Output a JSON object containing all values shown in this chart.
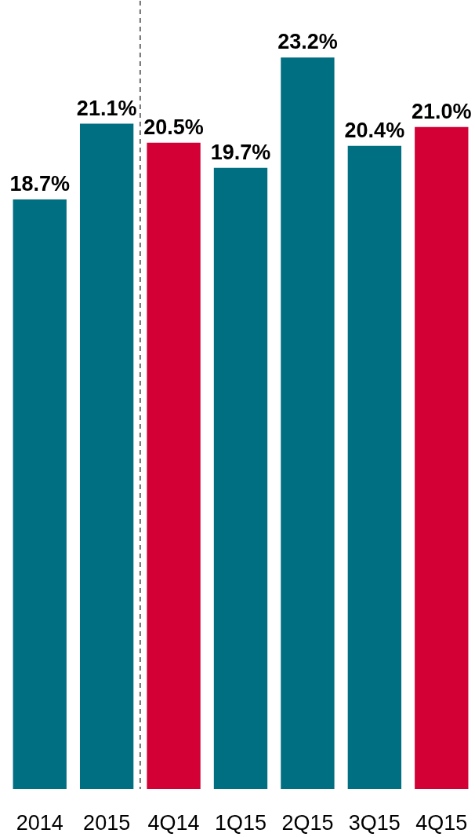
{
  "chart_data": {
    "type": "bar",
    "categories": [
      "2014",
      "2015",
      "4Q14",
      "1Q15",
      "2Q15",
      "3Q15",
      "4Q15"
    ],
    "values": [
      18.7,
      21.1,
      20.5,
      19.7,
      23.2,
      20.4,
      21.0
    ],
    "colors": [
      "#006f82",
      "#006f82",
      "#d30035",
      "#006f82",
      "#006f82",
      "#006f82",
      "#d30035"
    ],
    "value_labels": [
      "18.7%",
      "21.1%",
      "20.5%",
      "19.7%",
      "23.2%",
      "20.4%",
      "21.0%"
    ],
    "ylim": [
      0,
      25
    ],
    "tick_labels": "x"
  }
}
